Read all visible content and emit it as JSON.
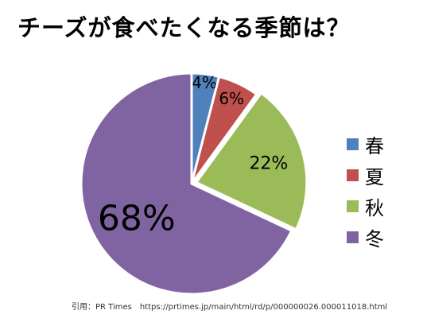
{
  "chart_data": {
    "type": "pie",
    "title": "チーズが食べたくなる季節は？",
    "categories": [
      "春",
      "夏",
      "秋",
      "冬"
    ],
    "values": [
      4,
      6,
      22,
      68
    ],
    "labels": [
      "4%",
      "6%",
      "22%",
      "68%"
    ],
    "colors": [
      "#4f81bd",
      "#c0504d",
      "#9bbb59",
      "#8064a2"
    ],
    "start": "12 o'clock",
    "direction": "clockwise",
    "exploded": "秋",
    "legend": "right"
  },
  "source": "引用：PR Times　https://prtimes.jp/main/html/rd/p/000000026.000011018.html"
}
